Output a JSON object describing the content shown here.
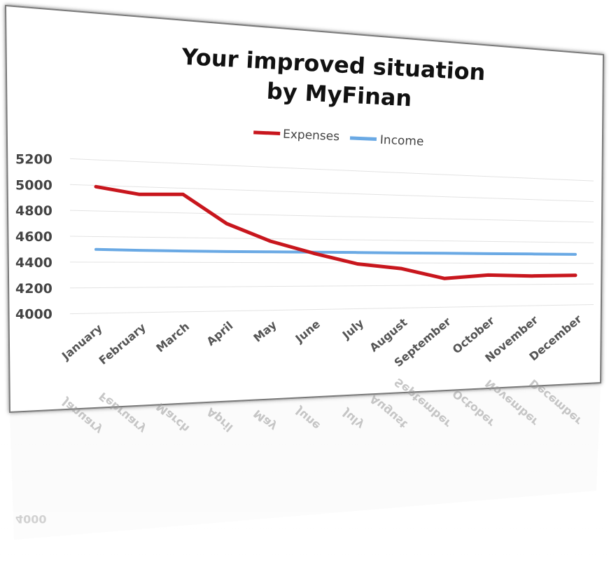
{
  "chart_data": {
    "type": "line",
    "title": "Your improved situation by MyFinan",
    "title_lines": [
      "Your improved situation",
      "by MyFinan"
    ],
    "categories": [
      "January",
      "February",
      "March",
      "April",
      "May",
      "June",
      "July",
      "August",
      "September",
      "October",
      "November",
      "December"
    ],
    "series": [
      {
        "name": "Expenses",
        "color": "#c8161d",
        "values": [
          4990,
          4940,
          4950,
          4720,
          4580,
          4480,
          4390,
          4350,
          4260,
          4290,
          4280,
          4285
        ]
      },
      {
        "name": "Income",
        "color": "#6aa9e4",
        "values": [
          4500,
          4495,
          4492,
          4490,
          4490,
          4490,
          4490,
          4488,
          4488,
          4487,
          4487,
          4486
        ]
      }
    ],
    "yticks": [
      4000,
      4200,
      4400,
      4600,
      4800,
      5000,
      5200
    ],
    "ylim": [
      4000,
      5200
    ],
    "xlabel": "",
    "ylabel": "",
    "grid": true,
    "legend_position": "top"
  }
}
